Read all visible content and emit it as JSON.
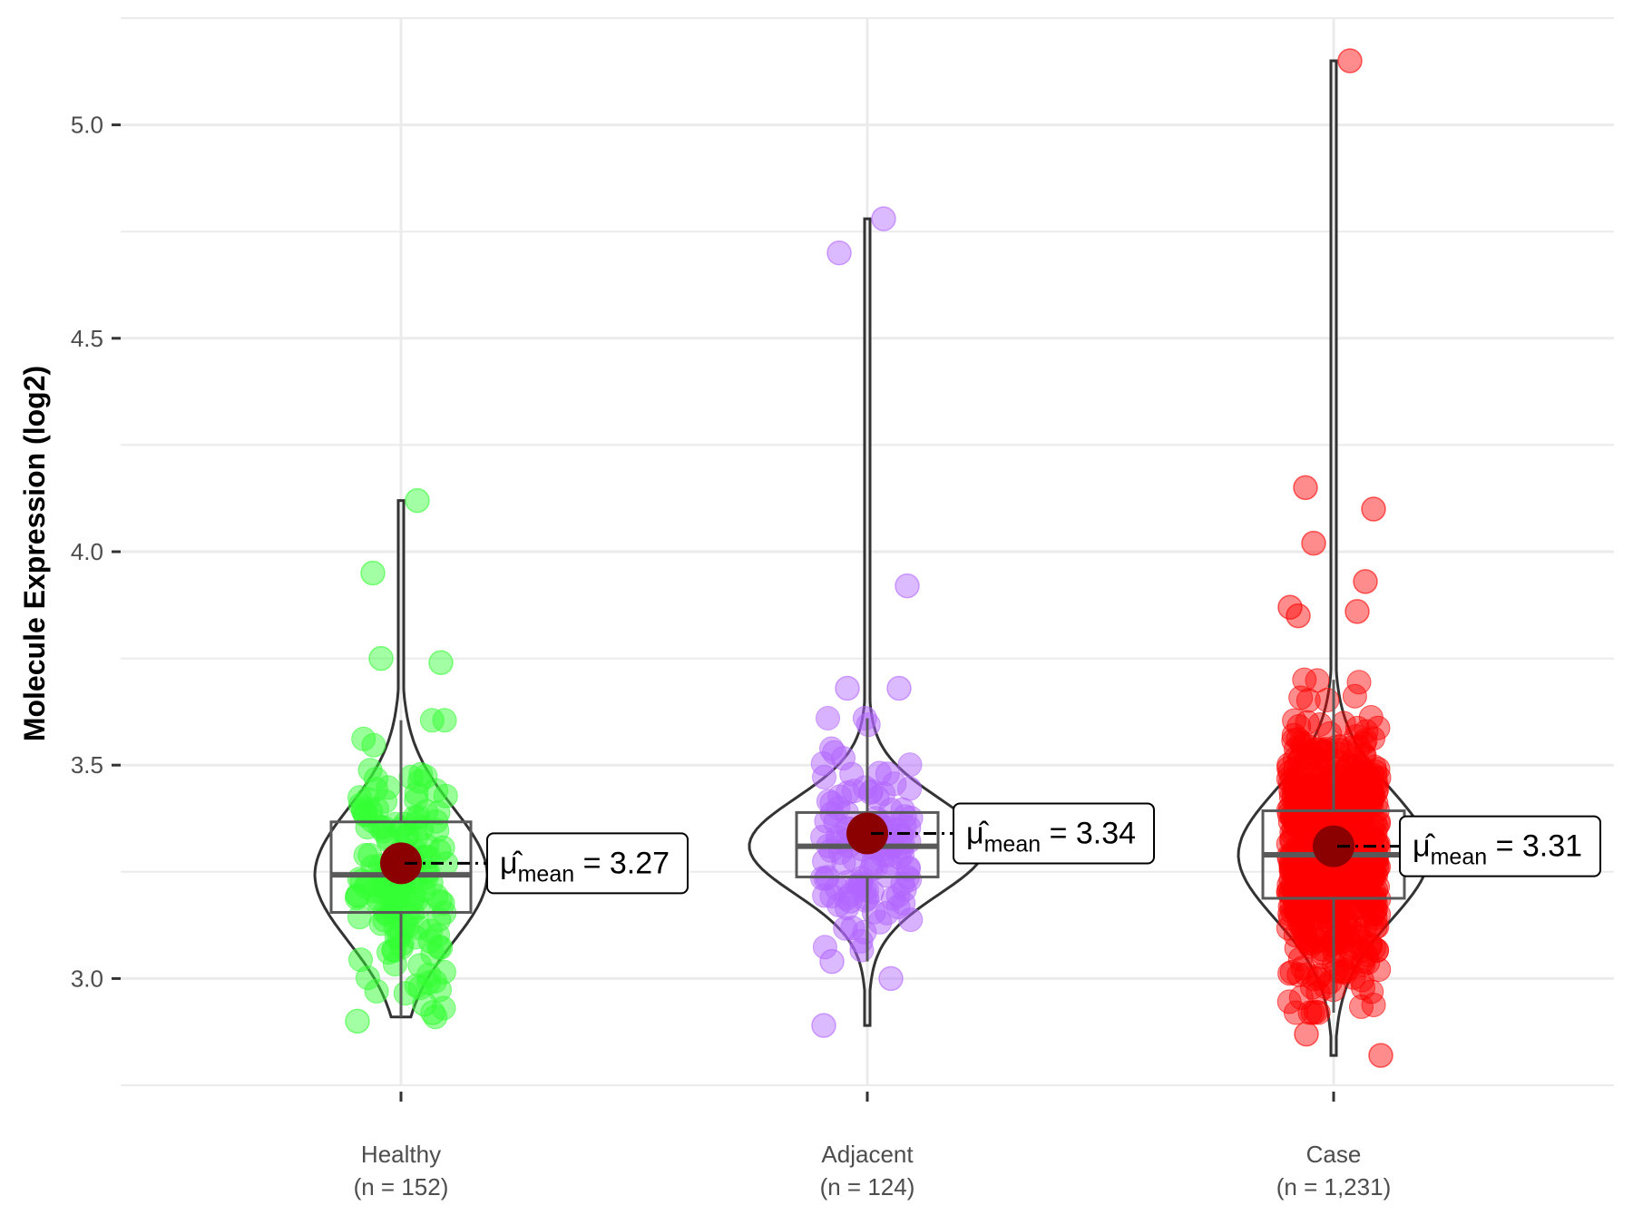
{
  "chart_data": {
    "type": "violin",
    "title": "",
    "xlabel": "",
    "ylabel": "Molecule Expression (log2)",
    "ylim": [
      2.75,
      5.25
    ],
    "yticks": [
      3.0,
      3.5,
      4.0,
      4.5,
      5.0
    ],
    "ytick_labels": [
      "3.0",
      "3.5",
      "4.0",
      "4.5",
      "5.0"
    ],
    "grid": true,
    "legend": "none",
    "mean_label_prefix": "μ̂",
    "mean_label_subscript": "mean",
    "groups": [
      {
        "name": "Healthy",
        "label_line1": "Healthy",
        "label_line2": "(n = 152)",
        "n": 152,
        "color": "#33ff33",
        "mean": 3.27,
        "mean_text": "3.27",
        "box": {
          "q1": 3.155,
          "median": 3.243,
          "q3": 3.367,
          "whisker_low": 2.91,
          "whisker_high": 3.605
        },
        "violin_range": [
          2.91,
          4.12
        ],
        "outliers": [
          4.12,
          3.95,
          3.74,
          3.75,
          2.92,
          2.9,
          2.94
        ]
      },
      {
        "name": "Adjacent",
        "label_line1": "Adjacent",
        "label_line2": "(n = 124)",
        "n": 124,
        "color": "#b266ff",
        "mean": 3.34,
        "mean_text": "3.34",
        "box": {
          "q1": 3.238,
          "median": 3.31,
          "q3": 3.389,
          "whisker_low": 3.04,
          "whisker_high": 3.61
        },
        "violin_range": [
          2.89,
          4.78
        ],
        "outliers": [
          4.78,
          4.7,
          3.92,
          3.68,
          3.68,
          2.89,
          3.0,
          3.04
        ]
      },
      {
        "name": "Case",
        "label_line1": "Case",
        "label_line2": "(n = 1,231)",
        "n": 1231,
        "color": "#ff0000",
        "mean": 3.31,
        "mean_text": "3.31",
        "box": {
          "q1": 3.188,
          "median": 3.29,
          "q3": 3.393,
          "whisker_low": 2.92,
          "whisker_high": 3.7
        },
        "violin_range": [
          2.82,
          5.15
        ],
        "outliers": [
          5.15,
          4.15,
          4.1,
          4.02,
          3.93,
          3.87,
          3.86,
          3.85,
          2.82,
          2.87
        ]
      }
    ]
  }
}
